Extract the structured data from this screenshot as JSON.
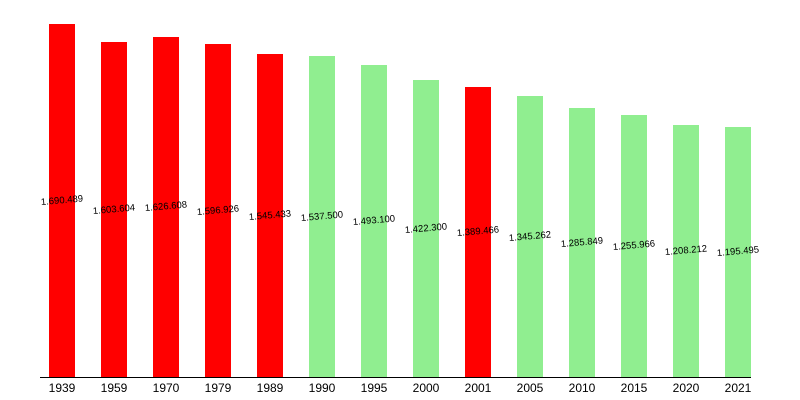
{
  "chart_data": {
    "type": "bar",
    "title": "",
    "xlabel": "",
    "ylabel": "",
    "categories": [
      "1939",
      "1959",
      "1970",
      "1979",
      "1989",
      "1990",
      "1995",
      "2000",
      "2001",
      "2005",
      "2010",
      "2015",
      "2020",
      "2021"
    ],
    "values": [
      1690489,
      1603604,
      1626608,
      1596926,
      1545433,
      1537500,
      1493100,
      1422300,
      1389466,
      1345262,
      1285849,
      1255966,
      1208212,
      1195495
    ],
    "value_labels": [
      "1.690.489",
      "1.603.604",
      "1.626.608",
      "1.596.926",
      "1.545.433",
      "1.537.500",
      "1.493.100",
      "1.422.300",
      "1.389.466",
      "1.345.262",
      "1.285.849",
      "1.255.966",
      "1.208.212",
      "1.195.495"
    ],
    "point_kinds": [
      "census",
      "census",
      "census",
      "census",
      "census",
      "estimate",
      "estimate",
      "estimate",
      "census",
      "estimate",
      "estimate",
      "estimate",
      "estimate",
      "estimate"
    ],
    "colors": {
      "census": "#ff0000",
      "estimate": "#90ee90"
    },
    "axis_color": "#000000",
    "label_color": "#000000",
    "background": "#ffffff",
    "ylim": [
      0,
      1800000
    ],
    "grid": false,
    "legend": "none"
  }
}
